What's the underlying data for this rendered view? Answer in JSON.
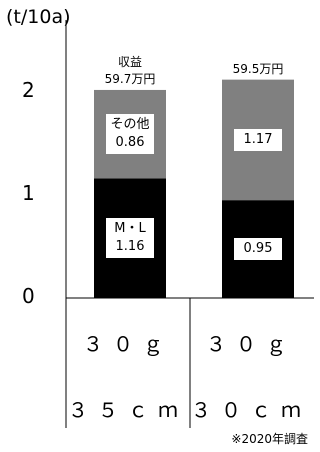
{
  "chart_data": {
    "type": "bar",
    "stacked": true,
    "ylabel": "(t/10a)",
    "ylim": [
      0,
      2.2
    ],
    "yticks": [
      0,
      1,
      2
    ],
    "groups": [
      {
        "line1": "３０ｇ",
        "line2": "３５ｃｍ"
      },
      {
        "line1": "３０ｇ",
        "line2": "３０ｃｍ"
      }
    ],
    "series": [
      {
        "name": "M・L",
        "color": "#000000",
        "values": [
          1.16,
          0.95
        ]
      },
      {
        "name": "その他",
        "color": "#808080",
        "values": [
          0.86,
          1.17
        ]
      }
    ],
    "segment_labels": [
      [
        "M・L\n1.16",
        "その他\n0.86"
      ],
      [
        "0.95",
        "1.17"
      ]
    ],
    "bar_notes": [
      "収益\n59.7万円",
      "59.5万円"
    ],
    "footnote": "※2020年調査"
  }
}
